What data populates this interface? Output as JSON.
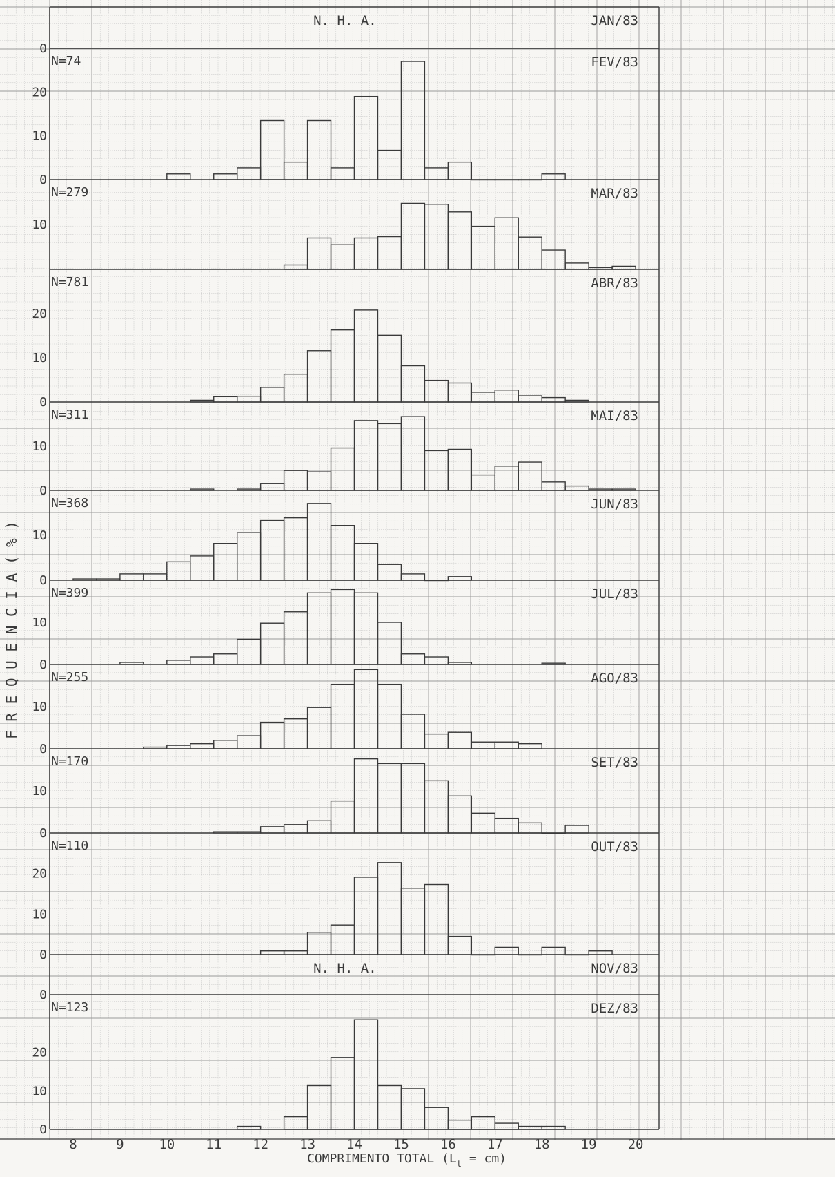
{
  "chart_data": {
    "type": "bar",
    "title": "",
    "xlabel": "COMPRIMENTO TOTAL (L",
    "xlabel_subscript": "t",
    "xlabel_suffix": " = cm)",
    "ylabel": "F R E Q U E N C I A   ( % )",
    "x_tick_labels": [
      "8",
      "9",
      "10",
      "11",
      "12",
      "13",
      "14",
      "15",
      "16",
      "17",
      "18",
      "19",
      "20"
    ],
    "x_range": [
      7.5,
      20.5
    ],
    "bin_width": 0.5,
    "grid": true,
    "panels": [
      {
        "label": "JAN/83",
        "n_text": "",
        "note": "N. H. A.",
        "ymax": 10,
        "ytick_labels": [
          "0"
        ],
        "bins": []
      },
      {
        "label": "FEV/83",
        "n_text": "N=74",
        "ymax": 30,
        "ytick_labels": [
          "0",
          "10",
          "20"
        ],
        "bins": [
          [
            10.0,
            1.3
          ],
          [
            11.0,
            1.3
          ],
          [
            11.5,
            2.7
          ],
          [
            12.0,
            13.5
          ],
          [
            12.5,
            4.0
          ],
          [
            13.0,
            13.5
          ],
          [
            13.5,
            2.7
          ],
          [
            14.0,
            19.0
          ],
          [
            14.5,
            6.7
          ],
          [
            15.0,
            27.0
          ],
          [
            15.5,
            2.7
          ],
          [
            16.0,
            4.0
          ],
          [
            16.5,
            0
          ],
          [
            17.0,
            0
          ],
          [
            17.5,
            0
          ],
          [
            18.0,
            1.3
          ]
        ]
      },
      {
        "label": "MAR/83",
        "n_text": "N=279",
        "ymax": 20,
        "ytick_labels": [
          "10"
        ],
        "bins": [
          [
            12.5,
            1.0
          ],
          [
            13.0,
            7.0
          ],
          [
            13.5,
            5.5
          ],
          [
            14.0,
            7.0
          ],
          [
            14.5,
            7.3
          ],
          [
            15.0,
            14.7
          ],
          [
            15.5,
            14.5
          ],
          [
            16.0,
            12.8
          ],
          [
            16.5,
            9.6
          ],
          [
            17.0,
            11.5
          ],
          [
            17.5,
            7.2
          ],
          [
            18.0,
            4.3
          ],
          [
            18.5,
            1.4
          ],
          [
            19.0,
            0.4
          ],
          [
            19.5,
            0.7
          ]
        ]
      },
      {
        "label": "ABR/83",
        "n_text": "N=781",
        "ymax": 30,
        "ytick_labels": [
          "0",
          "10",
          "20"
        ],
        "bins": [
          [
            10.5,
            0.4
          ],
          [
            11.0,
            1.2
          ],
          [
            11.5,
            1.3
          ],
          [
            12.0,
            3.3
          ],
          [
            12.5,
            6.3
          ],
          [
            13.0,
            11.6
          ],
          [
            13.5,
            16.3
          ],
          [
            14.0,
            20.8
          ],
          [
            14.5,
            15.1
          ],
          [
            15.0,
            8.2
          ],
          [
            15.5,
            4.9
          ],
          [
            16.0,
            4.3
          ],
          [
            16.5,
            2.2
          ],
          [
            17.0,
            2.7
          ],
          [
            17.5,
            1.4
          ],
          [
            18.0,
            1.0
          ],
          [
            18.5,
            0.4
          ]
        ]
      },
      {
        "label": "MAI/83",
        "n_text": "N=311",
        "ymax": 20,
        "ytick_labels": [
          "0",
          "10"
        ],
        "bins": [
          [
            10.5,
            0.3
          ],
          [
            11.5,
            0.3
          ],
          [
            12.0,
            1.6
          ],
          [
            12.5,
            4.5
          ],
          [
            13.0,
            4.2
          ],
          [
            13.5,
            9.6
          ],
          [
            14.0,
            15.8
          ],
          [
            14.5,
            15.1
          ],
          [
            15.0,
            16.7
          ],
          [
            15.5,
            9.0
          ],
          [
            16.0,
            9.3
          ],
          [
            16.5,
            3.5
          ],
          [
            17.0,
            5.5
          ],
          [
            17.5,
            6.4
          ],
          [
            18.0,
            1.9
          ],
          [
            18.5,
            1.0
          ],
          [
            19.0,
            0.3
          ],
          [
            19.5,
            0.3
          ]
        ]
      },
      {
        "label": "JUN/83",
        "n_text": "N=368",
        "ymax": 20,
        "ytick_labels": [
          "0",
          "10"
        ],
        "bins": [
          [
            8.0,
            0.3
          ],
          [
            8.5,
            0.3
          ],
          [
            9.0,
            1.4
          ],
          [
            9.5,
            1.4
          ],
          [
            10.0,
            4.1
          ],
          [
            10.5,
            5.4
          ],
          [
            11.0,
            8.2
          ],
          [
            11.5,
            10.6
          ],
          [
            12.0,
            13.3
          ],
          [
            12.5,
            13.9
          ],
          [
            13.0,
            17.1
          ],
          [
            13.5,
            12.2
          ],
          [
            14.0,
            8.2
          ],
          [
            14.5,
            3.5
          ],
          [
            15.0,
            1.4
          ],
          [
            15.5,
            0
          ],
          [
            16.0,
            0.8
          ]
        ]
      },
      {
        "label": "JUL/83",
        "n_text": "N=399",
        "ymax": 20,
        "ytick_labels": [
          "0",
          "10"
        ],
        "bins": [
          [
            9.0,
            0.5
          ],
          [
            10.0,
            1.0
          ],
          [
            10.5,
            1.8
          ],
          [
            11.0,
            2.5
          ],
          [
            11.5,
            6.0
          ],
          [
            12.0,
            9.8
          ],
          [
            12.5,
            12.5
          ],
          [
            13.0,
            17.0
          ],
          [
            13.5,
            17.8
          ],
          [
            14.0,
            17.0
          ],
          [
            14.5,
            10.0
          ],
          [
            15.0,
            2.5
          ],
          [
            15.5,
            1.8
          ],
          [
            16.0,
            0.5
          ],
          [
            18.0,
            0.3
          ]
        ]
      },
      {
        "label": "AGO/83",
        "n_text": "N=255",
        "ymax": 20,
        "ytick_labels": [
          "0",
          "10"
        ],
        "bins": [
          [
            9.5,
            0.4
          ],
          [
            10.0,
            0.8
          ],
          [
            10.5,
            1.2
          ],
          [
            11.0,
            2.0
          ],
          [
            11.5,
            3.1
          ],
          [
            12.0,
            6.3
          ],
          [
            12.5,
            7.1
          ],
          [
            13.0,
            9.8
          ],
          [
            13.5,
            15.3
          ],
          [
            14.0,
            18.8
          ],
          [
            14.5,
            15.3
          ],
          [
            15.0,
            8.2
          ],
          [
            15.5,
            3.5
          ],
          [
            16.0,
            3.9
          ],
          [
            16.5,
            1.6
          ],
          [
            17.0,
            1.6
          ],
          [
            17.5,
            1.2
          ]
        ]
      },
      {
        "label": "SET/83",
        "n_text": "N=170",
        "ymax": 20,
        "ytick_labels": [
          "0",
          "10"
        ],
        "bins": [
          [
            11.0,
            0.3
          ],
          [
            11.5,
            0.3
          ],
          [
            12.0,
            1.5
          ],
          [
            12.5,
            2.0
          ],
          [
            13.0,
            2.9
          ],
          [
            13.5,
            7.6
          ],
          [
            14.0,
            17.6
          ],
          [
            14.5,
            16.5
          ],
          [
            15.0,
            16.5
          ],
          [
            15.5,
            12.4
          ],
          [
            16.0,
            8.8
          ],
          [
            16.5,
            4.7
          ],
          [
            17.0,
            3.5
          ],
          [
            17.5,
            2.4
          ],
          [
            18.0,
            0
          ],
          [
            18.5,
            1.8
          ]
        ]
      },
      {
        "label": "OUT/83",
        "n_text": "N=110",
        "ymax": 30,
        "ytick_labels": [
          "0",
          "10",
          "20"
        ],
        "bins": [
          [
            12.0,
            0.9
          ],
          [
            12.5,
            0.9
          ],
          [
            13.0,
            5.5
          ],
          [
            13.5,
            7.3
          ],
          [
            14.0,
            19.1
          ],
          [
            14.5,
            22.7
          ],
          [
            15.0,
            16.4
          ],
          [
            15.5,
            17.3
          ],
          [
            16.0,
            4.5
          ],
          [
            16.5,
            0
          ],
          [
            17.0,
            1.8
          ],
          [
            17.5,
            0
          ],
          [
            18.0,
            1.8
          ],
          [
            18.5,
            0
          ],
          [
            19.0,
            0.9
          ]
        ]
      },
      {
        "label": "NOV/83",
        "n_text": "",
        "note": "N. H. A.",
        "ymax": 10,
        "ytick_labels": [
          "0"
        ],
        "bins": []
      },
      {
        "label": "DEZ/83",
        "n_text": "N=123",
        "ymax": 35,
        "ytick_labels": [
          "0",
          "10",
          "20"
        ],
        "bins": [
          [
            11.5,
            0.8
          ],
          [
            12.5,
            3.3
          ],
          [
            13.0,
            11.4
          ],
          [
            13.5,
            18.7
          ],
          [
            14.0,
            28.5
          ],
          [
            14.5,
            11.4
          ],
          [
            15.0,
            10.6
          ],
          [
            15.5,
            5.7
          ],
          [
            16.0,
            2.4
          ],
          [
            16.5,
            3.3
          ],
          [
            17.0,
            1.6
          ],
          [
            17.5,
            0.8
          ],
          [
            18.0,
            0.8
          ]
        ]
      }
    ]
  },
  "colors": {
    "paper": "#f7f6f3",
    "grid_major": "#9a9a9a",
    "grid_minor": "#c4c4c4",
    "ink": "#3a3a3a"
  }
}
